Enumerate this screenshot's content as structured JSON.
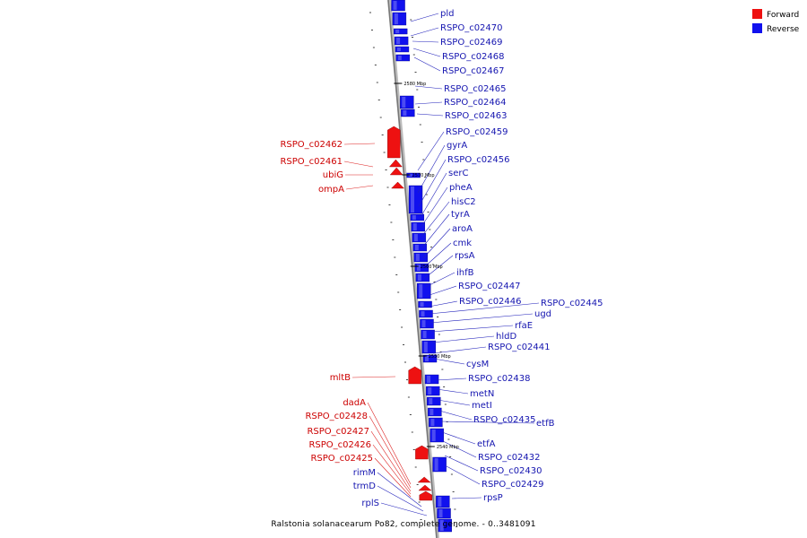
{
  "caption": "Ralstonia solanacearum Po82, complete genome. - 0..3481091",
  "colors": {
    "forward": "#ee1111",
    "reverse": "#1111ee",
    "forward_label": "#cc0000",
    "reverse_label": "#1515b0",
    "axis": "#888888"
  },
  "legend": [
    {
      "name": "Forward",
      "color": "#ee1111"
    },
    {
      "name": "Reverse",
      "color": "#1111ee"
    }
  ],
  "ticks": [
    "2580 Mbp",
    "2570 Mbp",
    "2560 Mbp",
    "2550 Mbp",
    "2540 Mbp"
  ],
  "forward_genes": [
    "RSPO_c02462",
    "RSPO_c02461",
    "ubiG",
    "ompA",
    "mltB",
    "dadA",
    "RSPO_c02428",
    "RSPO_c02427",
    "RSPO_c02426",
    "RSPO_c02425"
  ],
  "reverse_genes_left": [
    "rimM",
    "trmD",
    "rplS"
  ],
  "reverse_genes": [
    "pld",
    "RSPO_c02470",
    "RSPO_c02469",
    "RSPO_c02468",
    "RSPO_c02467",
    "RSPO_c02465",
    "RSPO_c02464",
    "RSPO_c02463",
    "RSPO_c02459",
    "gyrA",
    "RSPO_c02456",
    "serC",
    "pheA",
    "hisC2",
    "tyrA",
    "aroA",
    "cmk",
    "rpsA",
    "ihfB",
    "RSPO_c02447",
    "RSPO_c02446",
    "RSPO_c02445",
    "ugd",
    "rfaE",
    "hldD",
    "RSPO_c02441",
    "cysM",
    "RSPO_c02438",
    "metN",
    "metI",
    "RSPO_c02435",
    "etfB",
    "etfA",
    "RSPO_c02432",
    "RSPO_c02430",
    "RSPO_c02429",
    "rpsP"
  ]
}
